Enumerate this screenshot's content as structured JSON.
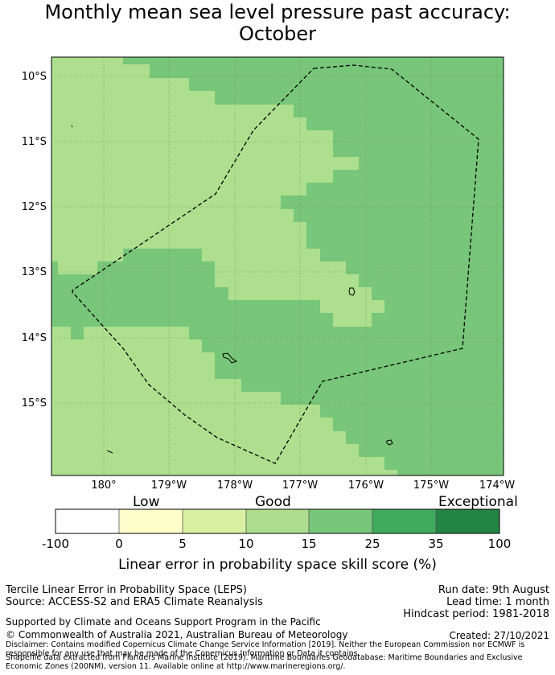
{
  "title": "Monthly mean sea level pressure past accuracy:\nOctober",
  "map": {
    "lat_labels": [
      "10°S",
      "11°S",
      "12°S",
      "13°S",
      "14°S",
      "15°S"
    ],
    "lon_labels": [
      "180°",
      "179°W",
      "178°W",
      "177°W",
      "176°W",
      "175°W",
      "174°W"
    ],
    "colors": {
      "good_10_15": "#addf8e",
      "good_15_25": "#78c679",
      "boundary": "#000000"
    }
  },
  "colorbar": {
    "category_labels": [
      "Low",
      "Good",
      "Exceptional"
    ],
    "tick_labels": [
      "-100",
      "0",
      "5",
      "10",
      "15",
      "25",
      "35",
      "100"
    ],
    "colors": [
      "#ffffff",
      "#ffffcc",
      "#d9f0a3",
      "#addd8e",
      "#78c679",
      "#41ab5d",
      "#238443"
    ],
    "label": "Linear error in probability space skill score (%)"
  },
  "footer": {
    "score_name": "Tercile Linear Error in Probability Space (LEPS)",
    "source": "Source: ACCESS-S2 and ERA5 Climate Reanalysis",
    "run_date": "Run date: 9th August",
    "lead_time": "Lead time: 1 month",
    "hindcast": "Hindcast period: 1981-2018",
    "supported_by": "Supported by Climate and Oceans Support Program in the Pacific",
    "copyright": "© Commonwealth of Australia 2021, Australian Bureau of Meteorology",
    "created": "Created: 27/10/2021",
    "disclaimer": "Disclaimer: Contains modified Copernicus Climate Change Service Information [2019]. Neither the European Commission nor ECMWF is responsible for any use that may be made of the Copernicus Information or Data it contains.",
    "shapefile": "Shapefile data extracted from Flanders Marine Institute (2019). Maritime Boundaries Geodatabase: Maritime Boundaries and Exclusive Economic Zones (200NM), version 11. Available online at http://www.marineregions.org/."
  }
}
